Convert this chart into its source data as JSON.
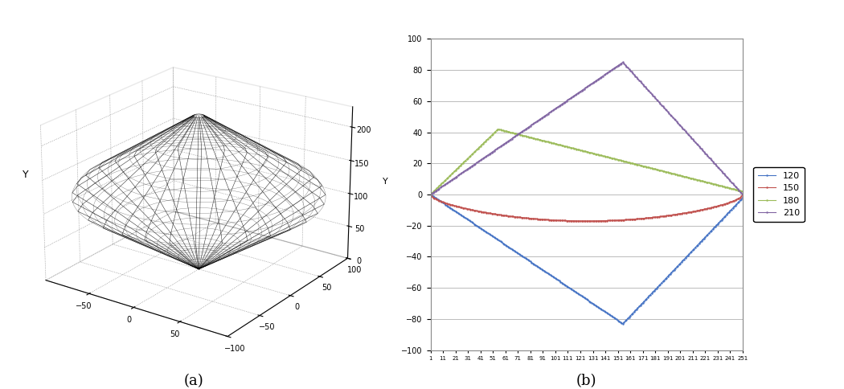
{
  "title_a": "(a)",
  "title_b": "(b)",
  "legend_labels": [
    "120",
    "150",
    "180",
    "210"
  ],
  "legend_colors": [
    "#4472C4",
    "#C0504D",
    "#9BBB59",
    "#8064A2"
  ],
  "ylim": [
    -100,
    100
  ],
  "yticks": [
    -100,
    -80,
    -60,
    -40,
    -20,
    0,
    20,
    40,
    60,
    80,
    100
  ],
  "x_max": 251,
  "ax3d_xlim": [
    -100,
    100
  ],
  "ax3d_ylim": [
    -100,
    100
  ],
  "ax3d_zlim": [
    0,
    230
  ],
  "ax3d_xticks": [
    -50,
    0,
    50
  ],
  "ax3d_yticks": [
    -100,
    -50,
    0,
    50,
    100
  ],
  "ax3d_zticks": [
    0,
    50,
    100,
    150,
    200
  ],
  "ax3d_ylabel": "Y"
}
